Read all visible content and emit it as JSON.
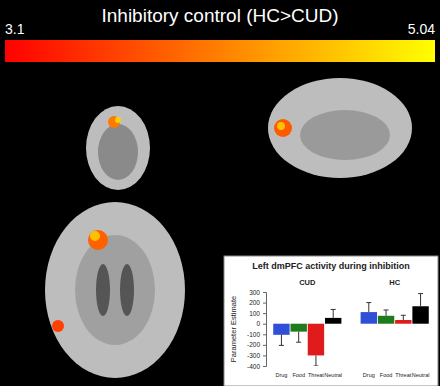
{
  "chart_data": [
    {
      "type": "brain_map",
      "title": "Inhibitory control (HC>CUD)",
      "colorbar": {
        "range": [
          3.1,
          5.04
        ],
        "ticks": [
          3.1,
          5.04
        ],
        "colors": [
          "#ff0000",
          "#ffff00"
        ]
      }
    },
    {
      "type": "bar",
      "title": "Left dmPFC activity during inhibition",
      "ylabel": "Parameter Estimate",
      "categories": [
        "Drug",
        "Food",
        "Threat",
        "Neutral"
      ],
      "colors": [
        "#2e4fd6",
        "#1e7b1e",
        "#e01b1b",
        "#000000"
      ],
      "series": [
        {
          "name": "CUD",
          "values": [
            -105,
            -75,
            -300,
            55
          ],
          "errors": [
            100,
            100,
            100,
            80
          ]
        },
        {
          "name": "HC",
          "values": [
            110,
            75,
            35,
            165
          ],
          "errors": [
            90,
            55,
            45,
            120
          ]
        }
      ],
      "ylim": [
        -400,
        300
      ],
      "yticks": [
        -400,
        -300,
        -200,
        -100,
        0,
        100,
        200,
        300
      ]
    }
  ]
}
